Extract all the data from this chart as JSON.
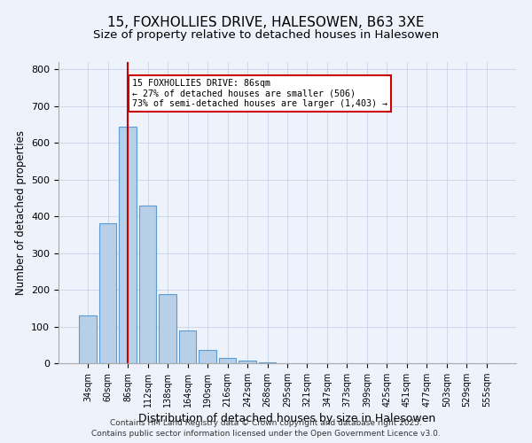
{
  "title": "15, FOXHOLLIES DRIVE, HALESOWEN, B63 3XE",
  "subtitle": "Size of property relative to detached houses in Halesowen",
  "xlabel": "Distribution of detached houses by size in Halesowen",
  "ylabel": "Number of detached properties",
  "bar_labels": [
    "34sqm",
    "60sqm",
    "86sqm",
    "112sqm",
    "138sqm",
    "164sqm",
    "190sqm",
    "216sqm",
    "242sqm",
    "268sqm",
    "295sqm",
    "321sqm",
    "347sqm",
    "373sqm",
    "399sqm",
    "425sqm",
    "451sqm",
    "477sqm",
    "503sqm",
    "529sqm",
    "555sqm"
  ],
  "bar_values": [
    130,
    380,
    643,
    430,
    187,
    90,
    36,
    15,
    8,
    3,
    0,
    0,
    0,
    0,
    0,
    0,
    0,
    0,
    0,
    0,
    0
  ],
  "bar_color": "#b8cfe8",
  "bar_edge_color": "#5b9bd5",
  "vline_x_index": 2,
  "vline_color": "#cc0000",
  "annotation_text": "15 FOXHOLLIES DRIVE: 86sqm\n← 27% of detached houses are smaller (506)\n73% of semi-detached houses are larger (1,403) →",
  "annotation_box_color": "#ffffff",
  "annotation_box_edge": "#cc0000",
  "ylim": [
    0,
    820
  ],
  "footnote1": "Contains HM Land Registry data © Crown copyright and database right 2025.",
  "footnote2": "Contains public sector information licensed under the Open Government Licence v3.0.",
  "bg_color": "#eef2fb",
  "title_fontsize": 11,
  "subtitle_fontsize": 9.5,
  "xlabel_fontsize": 9,
  "ylabel_fontsize": 8.5
}
